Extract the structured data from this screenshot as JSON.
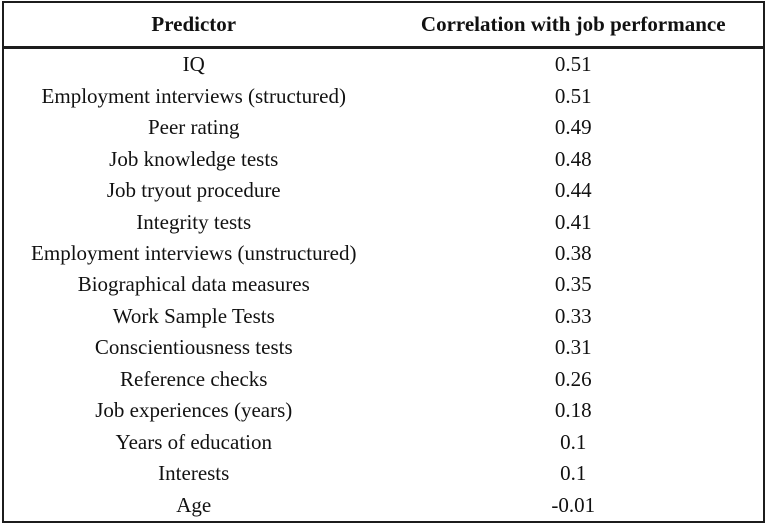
{
  "chart_data": {
    "type": "table",
    "columns": [
      "Predictor",
      "Correlation with job performance"
    ],
    "rows": [
      [
        "IQ",
        0.51
      ],
      [
        "Employment interviews (structured)",
        0.51
      ],
      [
        "Peer rating",
        0.49
      ],
      [
        "Job knowledge tests",
        0.48
      ],
      [
        "Job tryout procedure",
        0.44
      ],
      [
        "Integrity tests",
        0.41
      ],
      [
        "Employment interviews (unstructured)",
        0.38
      ],
      [
        "Biographical data measures",
        0.35
      ],
      [
        "Work Sample Tests",
        0.33
      ],
      [
        "Conscientiousness tests",
        0.31
      ],
      [
        "Reference checks",
        0.26
      ],
      [
        "Job experiences (years)",
        0.18
      ],
      [
        "Years of education",
        0.1
      ],
      [
        "Interests",
        0.1
      ],
      [
        "Age",
        -0.01
      ]
    ],
    "layout": {
      "grid": "outer-border-and-header-rule-only",
      "text_align": "center",
      "header_bold": true
    }
  },
  "colors": {
    "text": "#111111",
    "border": "#1c1c1c",
    "background": "#ffffff"
  }
}
